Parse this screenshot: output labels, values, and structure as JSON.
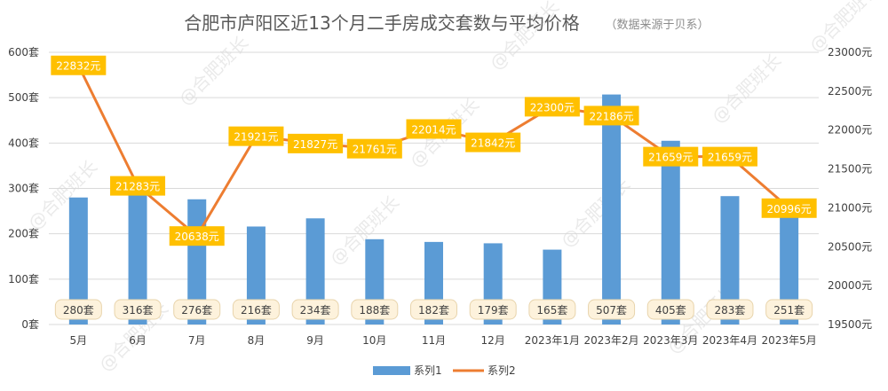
{
  "chart_data": {
    "type": "bar+line",
    "title": "合肥市庐阳区近13个月二手房成交套数与平均价格",
    "subtitle": "（数据来源于贝系）",
    "categories": [
      "5月",
      "6月",
      "7月",
      "8月",
      "9月",
      "10月",
      "11月",
      "12月",
      "2023年1月",
      "2023年2月",
      "2023年3月",
      "2023年4月",
      "2023年5月"
    ],
    "series": [
      {
        "name": "系列1",
        "type": "bar",
        "axis": "left",
        "color": "#5b9bd5",
        "values": [
          280,
          316,
          276,
          216,
          234,
          188,
          182,
          179,
          165,
          507,
          405,
          283,
          251
        ],
        "labels": [
          "280套",
          "316套",
          "276套",
          "216套",
          "234套",
          "188套",
          "182套",
          "179套",
          "165套",
          "507套",
          "405套",
          "283套",
          "251套"
        ]
      },
      {
        "name": "系列2",
        "type": "line",
        "axis": "right",
        "color": "#ed7d31",
        "values": [
          22832,
          21283,
          20638,
          21921,
          21827,
          21761,
          22014,
          21842,
          22300,
          22186,
          21659,
          21659,
          20996
        ],
        "labels": [
          "22832元",
          "21283元",
          "20638元",
          "21921元",
          "21827元",
          "21761元",
          "22014元",
          "21842元",
          "22300元",
          "22186元",
          "21659元",
          "21659元",
          "20996元"
        ]
      }
    ],
    "y_left": {
      "min": 0,
      "max": 600,
      "ticks": [
        0,
        100,
        200,
        300,
        400,
        500,
        600
      ],
      "tick_labels": [
        "0套",
        "100套",
        "200套",
        "300套",
        "400套",
        "500套",
        "600套"
      ]
    },
    "y_right": {
      "min": 19500,
      "max": 23000,
      "ticks": [
        19500,
        20000,
        20500,
        21000,
        21500,
        22000,
        22500,
        23000
      ],
      "tick_labels": [
        "19500元",
        "20000元",
        "20500元",
        "21000元",
        "21500元",
        "22000元",
        "22500元",
        "23000元"
      ]
    },
    "grid": true,
    "legend": "bottom",
    "watermark": "@合肥班长"
  }
}
